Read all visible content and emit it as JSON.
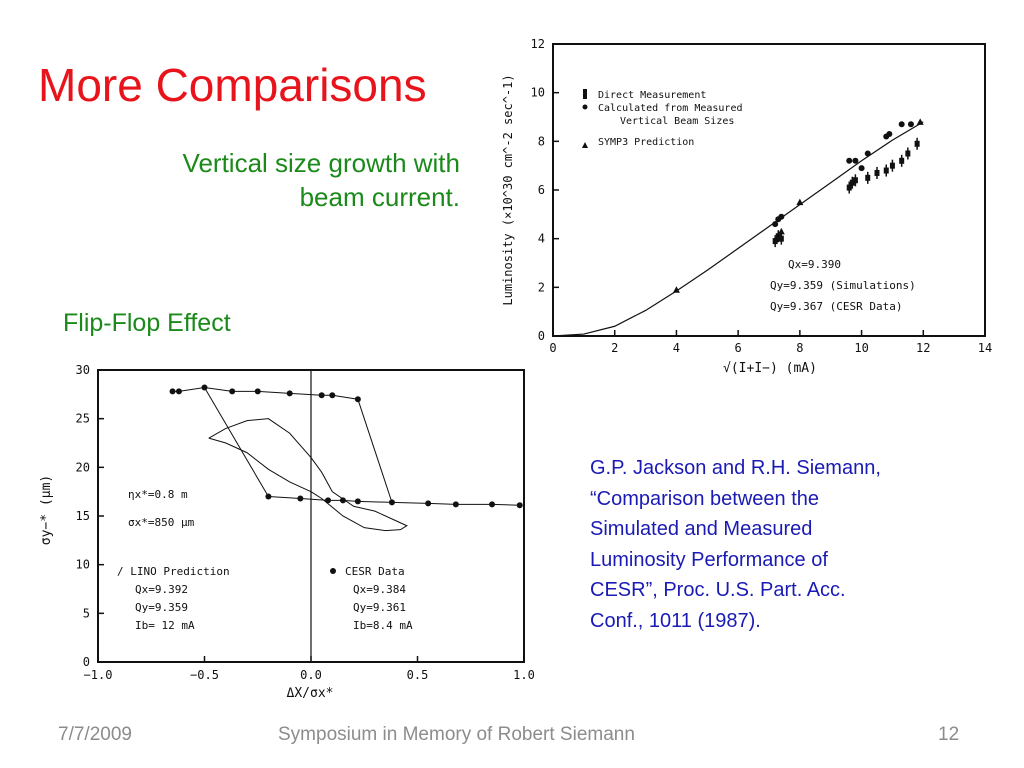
{
  "slide": {
    "title": "More Comparisons",
    "subtitle_lines": [
      "Vertical size growth with",
      "beam current."
    ],
    "flipflop_label": "Flip-Flop Effect",
    "reference_lines": [
      "G.P. Jackson and R.H. Siemann,",
      "“Comparison between the",
      "Simulated and Measured",
      "Luminosity Performance of",
      "CESR”, Proc. U.S. Part. Acc.",
      "Conf., 1011 (1987)."
    ],
    "footer": {
      "date": "7/7/2009",
      "center": "Symposium in Memory of Robert Siemann",
      "page": "12"
    },
    "colors": {
      "title": "#e8141b",
      "subtitle": "#1b8a1b",
      "reference": "#1a1ab4",
      "footer": "#8c8c8c"
    }
  },
  "chart_data": [
    {
      "type": "scatter",
      "ylabel": "Luminosity (×10^30 cm^-2 sec^-1)",
      "xlabel": "√(I+I−) (mA)",
      "xlim": [
        0,
        14
      ],
      "ylim": [
        0,
        12
      ],
      "xticks": [
        "0",
        "2",
        "4",
        "6",
        "8",
        "10",
        "12",
        "14"
      ],
      "yticks": [
        "0",
        "2",
        "4",
        "6",
        "8",
        "10",
        "12"
      ],
      "legend": [
        "Direct Measurement",
        "Calculated from Measured",
        "Vertical Beam Sizes",
        "SYMP3 Prediction"
      ],
      "annotations": [
        "Qx=9.390",
        "Qy=9.359 (Simulations)",
        "Qy=9.367 (CESR Data)"
      ],
      "series": [
        {
          "name": "Direct Measurement",
          "marker": "error-bar",
          "x": [
            7.2,
            7.3,
            7.4,
            9.6,
            9.7,
            9.8,
            10.2,
            10.5,
            10.8,
            11.0,
            11.3,
            11.5,
            11.8
          ],
          "y": [
            3.9,
            4.1,
            4.0,
            6.1,
            6.3,
            6.4,
            6.5,
            6.7,
            6.8,
            7.0,
            7.2,
            7.5,
            7.9
          ]
        },
        {
          "name": "Calculated from Measured Vertical Beam Sizes",
          "marker": "circle",
          "x": [
            7.2,
            7.3,
            7.4,
            9.6,
            9.8,
            10.0,
            10.2,
            10.8,
            10.9,
            11.3,
            11.6
          ],
          "y": [
            4.6,
            4.8,
            4.9,
            7.2,
            7.2,
            6.9,
            7.5,
            8.2,
            8.3,
            8.7,
            8.7
          ]
        },
        {
          "name": "SYMP3 Prediction",
          "marker": "triangle",
          "x": [
            4.0,
            7.4,
            8.0,
            11.9
          ],
          "y": [
            1.9,
            4.3,
            5.5,
            8.8
          ]
        },
        {
          "name": "fit",
          "marker": "line",
          "x": [
            0,
            1,
            2,
            3,
            4,
            5,
            6,
            7,
            8,
            9,
            10,
            11,
            12
          ],
          "y": [
            0,
            0.08,
            0.4,
            1.05,
            1.85,
            2.7,
            3.6,
            4.5,
            5.4,
            6.3,
            7.2,
            8.05,
            8.8
          ]
        }
      ]
    },
    {
      "type": "line",
      "ylabel": "σy−* (μm)",
      "xlabel": "ΔX/σx*",
      "xlim": [
        -1.0,
        1.0
      ],
      "ylim": [
        0,
        30
      ],
      "xticks": [
        "−1.0",
        "−0.5",
        "0.0",
        "0.5",
        "1.0"
      ],
      "yticks": [
        "0",
        "5",
        "10",
        "15",
        "20",
        "25",
        "30"
      ],
      "annotations": [
        "ηx*=0.8 m",
        "σx*=850 μm"
      ],
      "legend_left": [
        "/ LINO Prediction",
        "Qx=9.392",
        "Qy=9.359",
        "Ib= 12 mA"
      ],
      "legend_right": [
        "CESR Data",
        "Qx=9.384",
        "Qy=9.361",
        "Ib=8.4 mA"
      ],
      "series": [
        {
          "name": "upper branch",
          "marker": "circle",
          "x": [
            -0.65,
            -0.62,
            -0.5,
            -0.37,
            -0.25,
            -0.1,
            0.05,
            0.1,
            0.22
          ],
          "y": [
            27.8,
            27.8,
            28.2,
            27.8,
            27.8,
            27.6,
            27.4,
            27.4,
            27.0
          ]
        },
        {
          "name": "lower branch",
          "marker": "circle",
          "x": [
            -0.2,
            -0.05,
            0.08,
            0.15,
            0.22,
            0.38,
            0.55,
            0.68,
            0.85,
            0.98
          ],
          "y": [
            17.0,
            16.8,
            16.6,
            16.6,
            16.5,
            16.4,
            16.3,
            16.2,
            16.2,
            16.1
          ]
        },
        {
          "name": "LINO simulation trace",
          "marker": "line",
          "x": [
            -0.48,
            -0.4,
            -0.3,
            -0.2,
            -0.1,
            0.0,
            0.05,
            0.1,
            0.2,
            0.3,
            0.4,
            0.45,
            0.42,
            0.35,
            0.25,
            0.15,
            0.05,
            0.0,
            -0.1,
            -0.2,
            -0.3,
            -0.4,
            -0.48
          ],
          "y": [
            23.0,
            24.0,
            24.8,
            25.0,
            23.5,
            21.0,
            19.5,
            17.5,
            16.0,
            15.5,
            14.5,
            14.0,
            13.6,
            13.5,
            13.8,
            15.0,
            16.8,
            17.5,
            18.5,
            19.8,
            21.5,
            22.5,
            23.0
          ]
        }
      ]
    }
  ]
}
